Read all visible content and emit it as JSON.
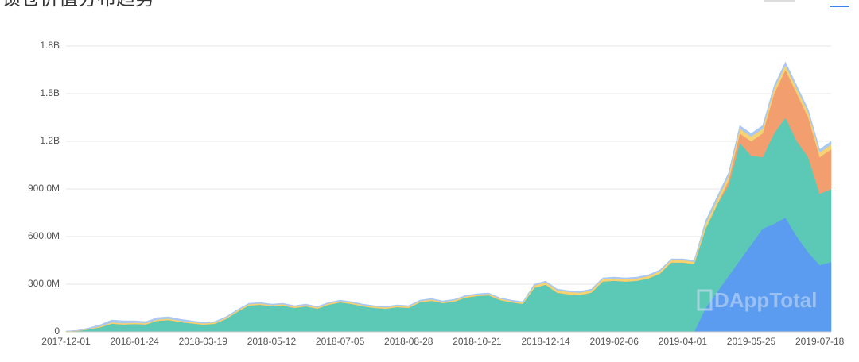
{
  "chart_data": {
    "type": "stacked_area",
    "title": "锁仓价值分布趋势",
    "watermark": "DAppTotal",
    "categories": [
      "2017-12-01",
      null,
      null,
      null,
      null,
      null,
      "2018-01-24",
      null,
      null,
      null,
      null,
      null,
      "2018-03-19",
      null,
      null,
      null,
      null,
      null,
      "2018-05-12",
      null,
      null,
      null,
      null,
      null,
      "2018-07-05",
      null,
      null,
      null,
      null,
      null,
      "2018-08-28",
      null,
      null,
      null,
      null,
      null,
      "2018-10-21",
      null,
      null,
      null,
      null,
      null,
      "2018-12-14",
      null,
      null,
      null,
      null,
      null,
      "2019-02-06",
      null,
      null,
      null,
      null,
      null,
      "2019-04-01",
      null,
      null,
      null,
      null,
      null,
      "2019-05-25",
      null,
      null,
      null,
      null,
      null,
      "2019-07-18",
      null
    ],
    "series": [
      {
        "color": "#5b9bf0",
        "values": [
          0,
          0,
          0,
          0,
          0,
          0,
          0,
          0,
          0,
          0,
          0,
          0,
          0,
          0,
          0,
          0,
          0,
          0,
          0,
          0,
          0,
          0,
          0,
          0,
          0,
          0,
          0,
          0,
          0,
          0,
          0,
          0,
          0,
          0,
          0,
          0,
          0,
          0,
          0,
          0,
          0,
          0,
          0,
          0,
          0,
          0,
          0,
          0,
          0,
          0,
          0,
          0,
          0,
          0,
          0,
          0,
          150000000,
          250000000,
          350000000,
          450000000,
          550000000,
          650000000,
          680000000,
          720000000,
          600000000,
          500000000,
          420000000,
          440000000
        ]
      },
      {
        "color": "#5cc9b6",
        "values": [
          3000000,
          6000000,
          16000000,
          29000000,
          52000000,
          47000000,
          50000000,
          47000000,
          70000000,
          75000000,
          62000000,
          54000000,
          46000000,
          51000000,
          81000000,
          126000000,
          166000000,
          171000000,
          161000000,
          166000000,
          151000000,
          161000000,
          146000000,
          171000000,
          186000000,
          176000000,
          161000000,
          151000000,
          146000000,
          156000000,
          151000000,
          186000000,
          196000000,
          181000000,
          191000000,
          216000000,
          226000000,
          231000000,
          201000000,
          186000000,
          176000000,
          277000000,
          297000000,
          247000000,
          237000000,
          232000000,
          247000000,
          317000000,
          322000000,
          317000000,
          322000000,
          337000000,
          367000000,
          437000000,
          437000000,
          427000000,
          500000000,
          550000000,
          570000000,
          740000000,
          560000000,
          450000000,
          570000000,
          630000000,
          600000000,
          600000000,
          450000000,
          460000000
        ]
      },
      {
        "color": "#f29e6e",
        "values": [
          0,
          0,
          0,
          0,
          0,
          0,
          0,
          0,
          0,
          0,
          0,
          0,
          0,
          0,
          0,
          0,
          0,
          0,
          0,
          0,
          0,
          0,
          0,
          0,
          0,
          0,
          0,
          0,
          0,
          0,
          0,
          0,
          0,
          0,
          0,
          0,
          0,
          0,
          0,
          0,
          0,
          0,
          0,
          0,
          0,
          0,
          0,
          0,
          0,
          0,
          0,
          0,
          0,
          0,
          0,
          0,
          0,
          0,
          30000000,
          60000000,
          90000000,
          150000000,
          250000000,
          300000000,
          300000000,
          250000000,
          230000000,
          250000000
        ]
      },
      {
        "color": "#f5d272",
        "values": [
          1000000,
          2000000,
          4000000,
          6000000,
          8000000,
          8000000,
          8000000,
          8000000,
          8000000,
          8000000,
          8000000,
          8000000,
          8000000,
          8000000,
          8000000,
          8000000,
          8000000,
          8000000,
          8000000,
          8000000,
          8000000,
          8000000,
          8000000,
          8000000,
          8000000,
          8000000,
          8000000,
          8000000,
          8000000,
          8000000,
          8000000,
          8000000,
          8000000,
          8000000,
          8000000,
          8000000,
          8000000,
          8000000,
          8000000,
          8000000,
          8000000,
          15000000,
          15000000,
          15000000,
          15000000,
          15000000,
          15000000,
          15000000,
          15000000,
          15000000,
          15000000,
          15000000,
          15000000,
          15000000,
          15000000,
          15000000,
          30000000,
          30000000,
          30000000,
          30000000,
          30000000,
          30000000,
          30000000,
          30000000,
          30000000,
          30000000,
          30000000,
          30000000
        ]
      },
      {
        "color": "#a9c8f2",
        "values": [
          1000000,
          2000000,
          5000000,
          10000000,
          15000000,
          15000000,
          12000000,
          10000000,
          12000000,
          12000000,
          10000000,
          8000000,
          6000000,
          6000000,
          6000000,
          6000000,
          6000000,
          6000000,
          6000000,
          6000000,
          6000000,
          6000000,
          6000000,
          6000000,
          6000000,
          6000000,
          6000000,
          6000000,
          6000000,
          6000000,
          6000000,
          6000000,
          6000000,
          6000000,
          6000000,
          6000000,
          6000000,
          6000000,
          6000000,
          6000000,
          6000000,
          8000000,
          8000000,
          8000000,
          8000000,
          8000000,
          8000000,
          8000000,
          8000000,
          8000000,
          8000000,
          8000000,
          8000000,
          8000000,
          8000000,
          8000000,
          20000000,
          20000000,
          20000000,
          20000000,
          20000000,
          20000000,
          20000000,
          20000000,
          20000000,
          20000000,
          20000000,
          20000000
        ]
      }
    ],
    "ylim": [
      0,
      1800000000
    ],
    "yticks": [
      0,
      {
        "value": 300000000,
        "label": "300.0M"
      },
      {
        "value": 600000000,
        "label": "600.0M"
      },
      {
        "value": 900000000,
        "label": "900.0M"
      },
      {
        "value": 1200000000,
        "label": "1.2B"
      },
      {
        "value": 1500000000,
        "label": "1.5B"
      },
      {
        "value": 1800000000,
        "label": "1.8B"
      }
    ],
    "grid": true
  }
}
